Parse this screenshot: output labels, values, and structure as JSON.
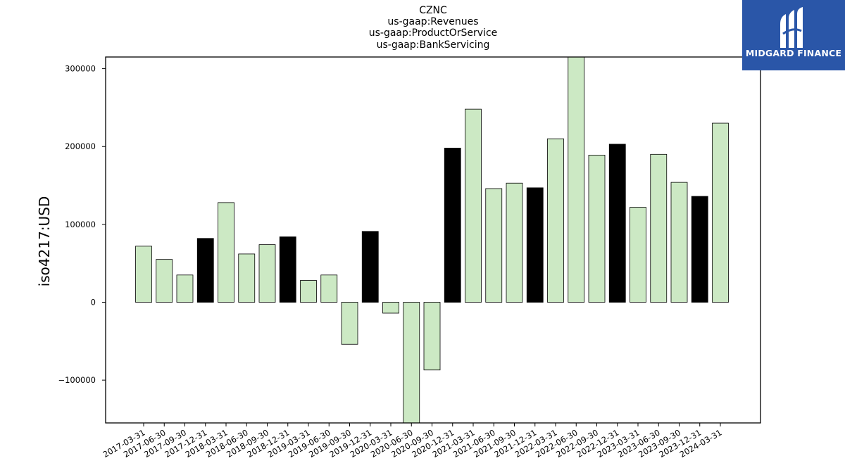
{
  "chart_data": {
    "type": "bar",
    "title_lines": [
      "CZNC",
      "us-gaap:Revenues",
      "us-gaap:ProductOrService",
      "us-gaap:BankServicing"
    ],
    "ylabel": "iso4217:USD",
    "xlabel": "",
    "ylim": [
      -155000,
      315000
    ],
    "yticks": [
      -100000,
      0,
      100000,
      200000,
      300000
    ],
    "ytick_labels": [
      "−100000",
      "0",
      "100000",
      "200000",
      "300000"
    ],
    "categories": [
      "2017-03-31",
      "2017-06-30",
      "2017-09-30",
      "2017-12-31",
      "2018-03-31",
      "2018-06-30",
      "2018-09-30",
      "2018-12-31",
      "2019-03-31",
      "2019-06-30",
      "2019-09-30",
      "2019-12-31",
      "2020-03-31",
      "2020-06-30",
      "2020-09-30",
      "2020-12-31",
      "2021-03-31",
      "2021-06-30",
      "2021-09-30",
      "2021-12-31",
      "2022-03-31",
      "2022-06-30",
      "2022-09-30",
      "2022-12-31",
      "2023-03-31",
      "2023-06-30",
      "2023-09-30",
      "2023-12-31",
      "2024-03-31"
    ],
    "values": [
      72000,
      55000,
      35000,
      82000,
      128000,
      62000,
      74000,
      84000,
      28000,
      35000,
      -54000,
      91000,
      -14000,
      -160000,
      -87000,
      198000,
      248000,
      146000,
      153000,
      147000,
      210000,
      318000,
      189000,
      203000,
      122000,
      190000,
      154000,
      136000,
      230000
    ],
    "bar_colors": [
      "#cce9c4",
      "#cce9c4",
      "#cce9c4",
      "#000000",
      "#cce9c4",
      "#cce9c4",
      "#cce9c4",
      "#000000",
      "#cce9c4",
      "#cce9c4",
      "#cce9c4",
      "#000000",
      "#cce9c4",
      "#cce9c4",
      "#cce9c4",
      "#000000",
      "#cce9c4",
      "#cce9c4",
      "#cce9c4",
      "#000000",
      "#cce9c4",
      "#cce9c4",
      "#cce9c4",
      "#000000",
      "#cce9c4",
      "#cce9c4",
      "#cce9c4",
      "#000000",
      "#cce9c4"
    ],
    "grid": false,
    "legend": "none"
  },
  "logo": {
    "text": "MIDGARD FINANCE",
    "background": "#2a56a8"
  }
}
